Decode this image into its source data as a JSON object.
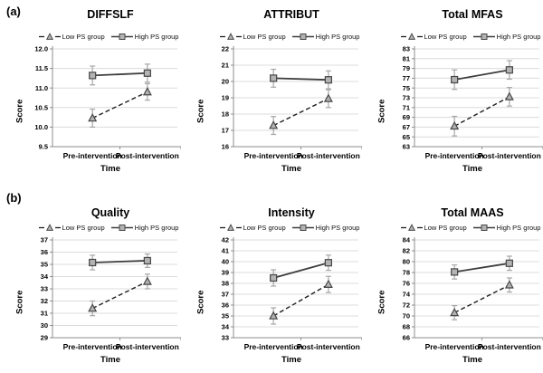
{
  "figure_labels": {
    "row_a": "(a)",
    "row_b": "(b)"
  },
  "legend": {
    "low_label": "Low PS group",
    "high_label": "High PS group"
  },
  "colors": {
    "dashed_line": "#1f1f1f",
    "solid_line": "#3d3d3d",
    "marker_fill": "#b3b3b3",
    "marker_stroke": "#474747",
    "error_bar": "#a6a6a6",
    "gridline": "#dcdcdc",
    "axis": "#8c8c8c",
    "text": "#000000"
  },
  "chart_data": [
    {
      "type": "line",
      "row": "a",
      "title": "DIFFSLF",
      "xlabel": "Time",
      "ylabel": "Score",
      "categories": [
        "Pre-intervention",
        "Post-intervention"
      ],
      "ylim": [
        9.5,
        12.0
      ],
      "ytick_step": 0.5,
      "ytick_decimals": 1,
      "grid": true,
      "legend_position": "top",
      "series": [
        {
          "name": "Low PS group",
          "line_style": "dashed",
          "marker": "triangle",
          "values": [
            10.23,
            10.9
          ],
          "errors": [
            0.23,
            0.21
          ]
        },
        {
          "name": "High PS group",
          "line_style": "solid",
          "marker": "square",
          "values": [
            11.32,
            11.38
          ],
          "errors": [
            0.24,
            0.23
          ]
        }
      ]
    },
    {
      "type": "line",
      "row": "a",
      "title": "ATTRIBUT",
      "xlabel": "Time",
      "ylabel": "Score",
      "categories": [
        "Pre-intervention",
        "Post-intervention"
      ],
      "ylim": [
        16,
        22
      ],
      "ytick_step": 1,
      "ytick_decimals": 0,
      "grid": true,
      "legend_position": "top",
      "series": [
        {
          "name": "Low PS group",
          "line_style": "dashed",
          "marker": "triangle",
          "values": [
            17.3,
            18.95
          ],
          "errors": [
            0.55,
            0.55
          ]
        },
        {
          "name": "High PS group",
          "line_style": "solid",
          "marker": "square",
          "values": [
            20.2,
            20.1
          ],
          "errors": [
            0.55,
            0.55
          ]
        }
      ]
    },
    {
      "type": "line",
      "row": "a",
      "title": "Total MFAS",
      "xlabel": "Time",
      "ylabel": "Score",
      "categories": [
        "Pre-intervention",
        "Post-intervention"
      ],
      "ylim": [
        63,
        83
      ],
      "ytick_step": 2,
      "ytick_decimals": 0,
      "grid": true,
      "legend_position": "top",
      "series": [
        {
          "name": "Low PS group",
          "line_style": "dashed",
          "marker": "triangle",
          "values": [
            67.2,
            73.2
          ],
          "errors": [
            2.0,
            1.9
          ]
        },
        {
          "name": "High PS group",
          "line_style": "solid",
          "marker": "square",
          "values": [
            76.7,
            78.7
          ],
          "errors": [
            2.0,
            1.9
          ]
        }
      ]
    },
    {
      "type": "line",
      "row": "b",
      "title": "Quality",
      "xlabel": "Time",
      "ylabel": "Score",
      "categories": [
        "Pre-intervention",
        "Post-intervention"
      ],
      "ylim": [
        29,
        37
      ],
      "ytick_step": 1,
      "ytick_decimals": 0,
      "grid": true,
      "legend_position": "top",
      "series": [
        {
          "name": "Low PS group",
          "line_style": "dashed",
          "marker": "triangle",
          "values": [
            31.4,
            33.6
          ],
          "errors": [
            0.6,
            0.6
          ]
        },
        {
          "name": "High PS group",
          "line_style": "solid",
          "marker": "square",
          "values": [
            35.15,
            35.3
          ],
          "errors": [
            0.6,
            0.55
          ]
        }
      ]
    },
    {
      "type": "line",
      "row": "b",
      "title": "Intensity",
      "xlabel": "Time",
      "ylabel": "Score",
      "categories": [
        "Pre-intervention",
        "Post-intervention"
      ],
      "ylim": [
        33,
        42
      ],
      "ytick_step": 1,
      "ytick_decimals": 0,
      "grid": true,
      "legend_position": "top",
      "series": [
        {
          "name": "Low PS group",
          "line_style": "dashed",
          "marker": "triangle",
          "values": [
            35.0,
            37.9
          ],
          "errors": [
            0.75,
            0.75
          ]
        },
        {
          "name": "High PS group",
          "line_style": "solid",
          "marker": "square",
          "values": [
            38.5,
            39.9
          ],
          "errors": [
            0.75,
            0.7
          ]
        }
      ]
    },
    {
      "type": "line",
      "row": "b",
      "title": "Total MAAS",
      "xlabel": "Time",
      "ylabel": "Score",
      "categories": [
        "Pre-intervention",
        "Post-intervention"
      ],
      "ylim": [
        66,
        84
      ],
      "ytick_step": 2,
      "ytick_decimals": 0,
      "grid": true,
      "legend_position": "top",
      "series": [
        {
          "name": "Low PS group",
          "line_style": "dashed",
          "marker": "triangle",
          "values": [
            70.6,
            75.7
          ],
          "errors": [
            1.3,
            1.3
          ]
        },
        {
          "name": "High PS group",
          "line_style": "solid",
          "marker": "square",
          "values": [
            78.1,
            79.7
          ],
          "errors": [
            1.3,
            1.3
          ]
        }
      ]
    }
  ]
}
